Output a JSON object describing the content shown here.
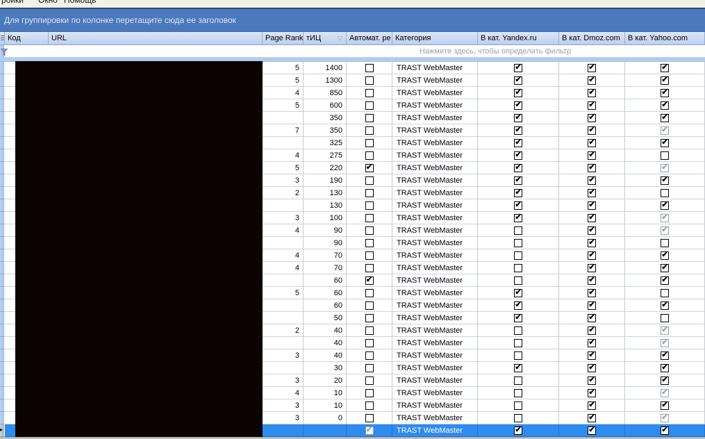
{
  "menu": {
    "items": [
      {
        "label": "ройки"
      },
      {
        "label": "Окно"
      },
      {
        "label": "Помощь"
      }
    ]
  },
  "group_panel": {
    "text": "Для группировки по колонке перетащите сюда ее заголовок"
  },
  "columns": [
    {
      "key": "kod",
      "label": "Код"
    },
    {
      "key": "url",
      "label": "URL"
    },
    {
      "key": "page_rank",
      "label": "Page Rank"
    },
    {
      "key": "tic",
      "label": "тИЦ",
      "sort": "desc",
      "sort_glyph": "▽"
    },
    {
      "key": "auto",
      "label": "Автомат. ре"
    },
    {
      "key": "category",
      "label": "Категория"
    },
    {
      "key": "yandex",
      "label": "В кат. Yandex.ru"
    },
    {
      "key": "dmoz",
      "label": "В кат. Dmoz.com"
    },
    {
      "key": "yahoo",
      "label": "В кат. Yahoo.com"
    }
  ],
  "filter_row": {
    "text": "Нажмите здесь, чтобы определить фильтр"
  },
  "grid": {
    "rows": [
      {
        "page_rank": "5",
        "tic": "1400",
        "auto": "off",
        "category": "TRAST WebMaster",
        "yandex": "on",
        "dmoz": "on",
        "yahoo": "on"
      },
      {
        "page_rank": "5",
        "tic": "1300",
        "auto": "off",
        "category": "TRAST WebMaster",
        "yandex": "on",
        "dmoz": "on",
        "yahoo": "on"
      },
      {
        "page_rank": "4",
        "tic": "850",
        "auto": "off",
        "category": "TRAST WebMaster",
        "yandex": "on",
        "dmoz": "on",
        "yahoo": "on"
      },
      {
        "page_rank": "5",
        "tic": "600",
        "auto": "off",
        "category": "TRAST WebMaster",
        "yandex": "on",
        "dmoz": "on",
        "yahoo": "on"
      },
      {
        "page_rank": "",
        "tic": "350",
        "auto": "off",
        "category": "TRAST WebMaster",
        "yandex": "on",
        "dmoz": "on",
        "yahoo": "on"
      },
      {
        "page_rank": "7",
        "tic": "350",
        "auto": "off",
        "category": "TRAST WebMaster",
        "yandex": "on",
        "dmoz": "on",
        "yahoo": "dim"
      },
      {
        "page_rank": "",
        "tic": "325",
        "auto": "off",
        "category": "TRAST WebMaster",
        "yandex": "on",
        "dmoz": "on",
        "yahoo": "on"
      },
      {
        "page_rank": "4",
        "tic": "275",
        "auto": "off",
        "category": "TRAST WebMaster",
        "yandex": "on",
        "dmoz": "on",
        "yahoo": "off"
      },
      {
        "page_rank": "5",
        "tic": "220",
        "auto": "on",
        "category": "TRAST WebMaster",
        "yandex": "on",
        "dmoz": "on",
        "yahoo": "dim"
      },
      {
        "page_rank": "3",
        "tic": "190",
        "auto": "off",
        "category": "TRAST WebMaster",
        "yandex": "on",
        "dmoz": "on",
        "yahoo": "on"
      },
      {
        "page_rank": "2",
        "tic": "130",
        "auto": "off",
        "category": "TRAST WebMaster",
        "yandex": "on",
        "dmoz": "on",
        "yahoo": "off"
      },
      {
        "page_rank": "",
        "tic": "130",
        "auto": "off",
        "category": "TRAST WebMaster",
        "yandex": "on",
        "dmoz": "on",
        "yahoo": "on"
      },
      {
        "page_rank": "3",
        "tic": "100",
        "auto": "off",
        "category": "TRAST WebMaster",
        "yandex": "on",
        "dmoz": "on",
        "yahoo": "dim"
      },
      {
        "page_rank": "4",
        "tic": "90",
        "auto": "off",
        "category": "TRAST WebMaster",
        "yandex": "off",
        "dmoz": "on",
        "yahoo": "dim"
      },
      {
        "page_rank": "",
        "tic": "90",
        "auto": "off",
        "category": "TRAST WebMaster",
        "yandex": "off",
        "dmoz": "on",
        "yahoo": "off"
      },
      {
        "page_rank": "4",
        "tic": "70",
        "auto": "off",
        "category": "TRAST WebMaster",
        "yandex": "off",
        "dmoz": "on",
        "yahoo": "on"
      },
      {
        "page_rank": "4",
        "tic": "70",
        "auto": "off",
        "category": "TRAST WebMaster",
        "yandex": "off",
        "dmoz": "on",
        "yahoo": "on"
      },
      {
        "page_rank": "",
        "tic": "60",
        "auto": "on",
        "category": "TRAST WebMaster",
        "yandex": "off",
        "dmoz": "on",
        "yahoo": "on"
      },
      {
        "page_rank": "5",
        "tic": "60",
        "auto": "off",
        "category": "TRAST WebMaster",
        "yandex": "on",
        "dmoz": "on",
        "yahoo": "off"
      },
      {
        "page_rank": "",
        "tic": "60",
        "auto": "off",
        "category": "TRAST WebMaster",
        "yandex": "on",
        "dmoz": "on",
        "yahoo": "on"
      },
      {
        "page_rank": "",
        "tic": "50",
        "auto": "off",
        "category": "TRAST WebMaster",
        "yandex": "on",
        "dmoz": "on",
        "yahoo": "off"
      },
      {
        "page_rank": "2",
        "tic": "40",
        "auto": "off",
        "category": "TRAST WebMaster",
        "yandex": "off",
        "dmoz": "on",
        "yahoo": "dim"
      },
      {
        "page_rank": "",
        "tic": "40",
        "auto": "off",
        "category": "TRAST WebMaster",
        "yandex": "off",
        "dmoz": "on",
        "yahoo": "dim"
      },
      {
        "page_rank": "3",
        "tic": "40",
        "auto": "off",
        "category": "TRAST WebMaster",
        "yandex": "off",
        "dmoz": "on",
        "yahoo": "on"
      },
      {
        "page_rank": "",
        "tic": "30",
        "auto": "off",
        "category": "TRAST WebMaster",
        "yandex": "on",
        "dmoz": "on",
        "yahoo": "on"
      },
      {
        "page_rank": "3",
        "tic": "20",
        "auto": "off",
        "category": "TRAST WebMaster",
        "yandex": "off",
        "dmoz": "on",
        "yahoo": "on"
      },
      {
        "page_rank": "4",
        "tic": "10",
        "auto": "off",
        "category": "TRAST WebMaster",
        "yandex": "off",
        "dmoz": "on",
        "yahoo": "dim"
      },
      {
        "page_rank": "3",
        "tic": "10",
        "auto": "off",
        "category": "TRAST WebMaster",
        "yandex": "off",
        "dmoz": "on",
        "yahoo": "on"
      },
      {
        "page_rank": "3",
        "tic": "0",
        "auto": "off",
        "category": "TRAST WebMaster",
        "yandex": "off",
        "dmoz": "on",
        "yahoo": "dim"
      },
      {
        "page_rank": "",
        "tic": "",
        "auto": "dim",
        "category": "TRAST WebMaster",
        "yandex": "on",
        "dmoz": "on",
        "yahoo": "on",
        "selected": true
      }
    ]
  },
  "colors": {
    "selection": "#2e8bf0",
    "group_panel": "#4b79bc",
    "header_top": "#dce7f7",
    "header_bottom": "#bdd0ec",
    "redaction": "#0c0202"
  }
}
